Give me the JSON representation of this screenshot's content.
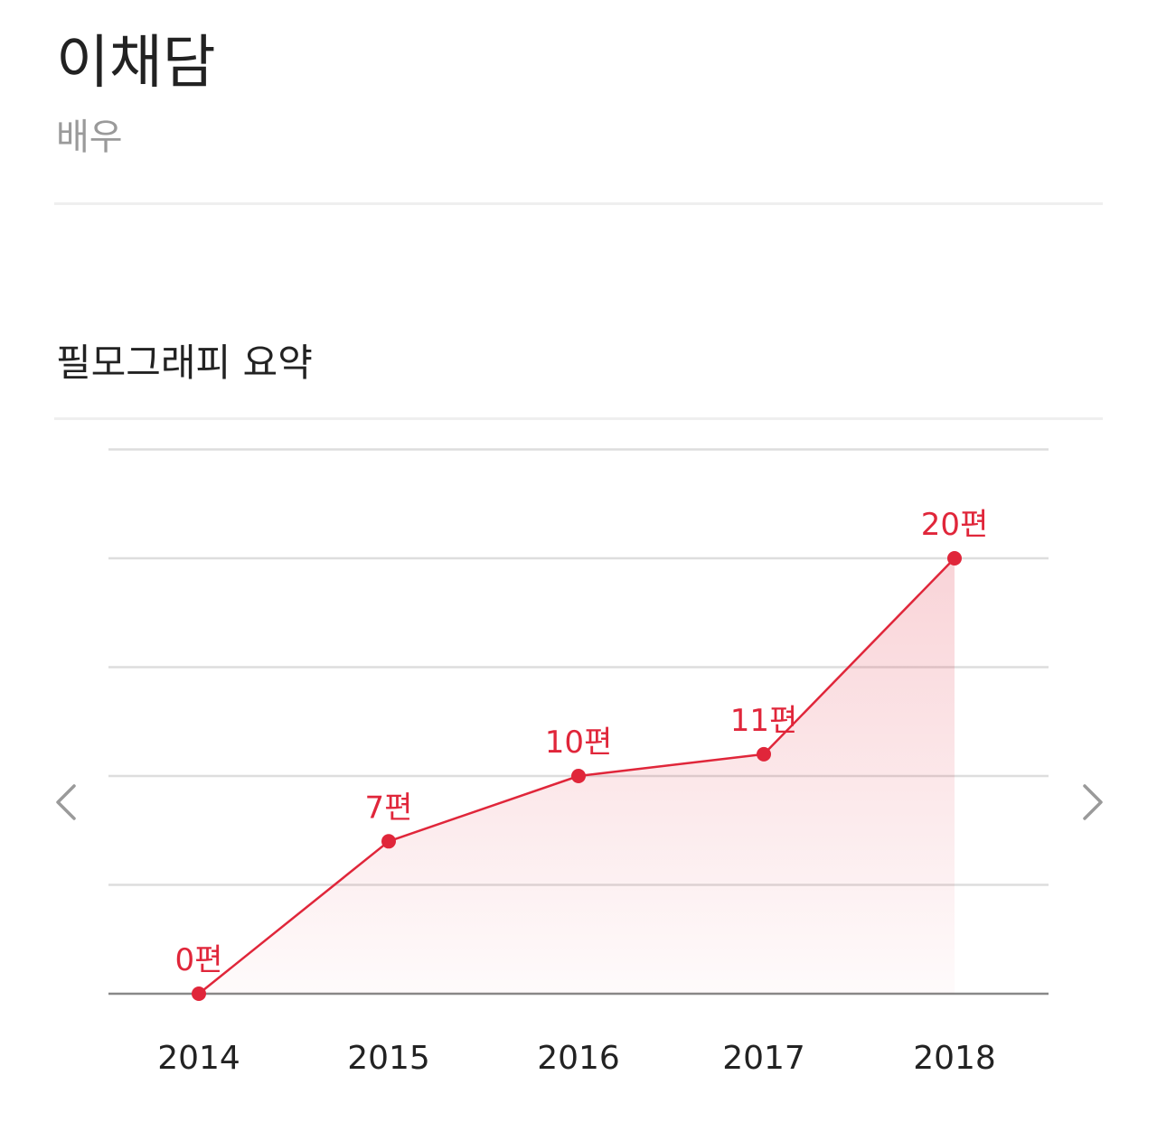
{
  "header": {
    "name": "이채담",
    "role": "배우"
  },
  "section": {
    "title": "필모그래피 요약"
  },
  "navigation": {
    "prev_icon": "chevron-left-icon",
    "next_icon": "chevron-right-icon"
  },
  "colors": {
    "accent": "#e0263a",
    "grid": "#dddddd",
    "axis": "#888888",
    "muted": "#9a9a9a"
  },
  "chart_data": {
    "type": "area",
    "title": "",
    "xlabel": "",
    "ylabel": "",
    "categories": [
      "2014",
      "2015",
      "2016",
      "2017",
      "2018"
    ],
    "series": [
      {
        "values": [
          0,
          7,
          10,
          11,
          20
        ],
        "labels": [
          "0편",
          "7편",
          "10편",
          "11편",
          "20편"
        ]
      }
    ],
    "ylim": [
      0,
      25
    ],
    "grid": true,
    "legend": "none"
  }
}
